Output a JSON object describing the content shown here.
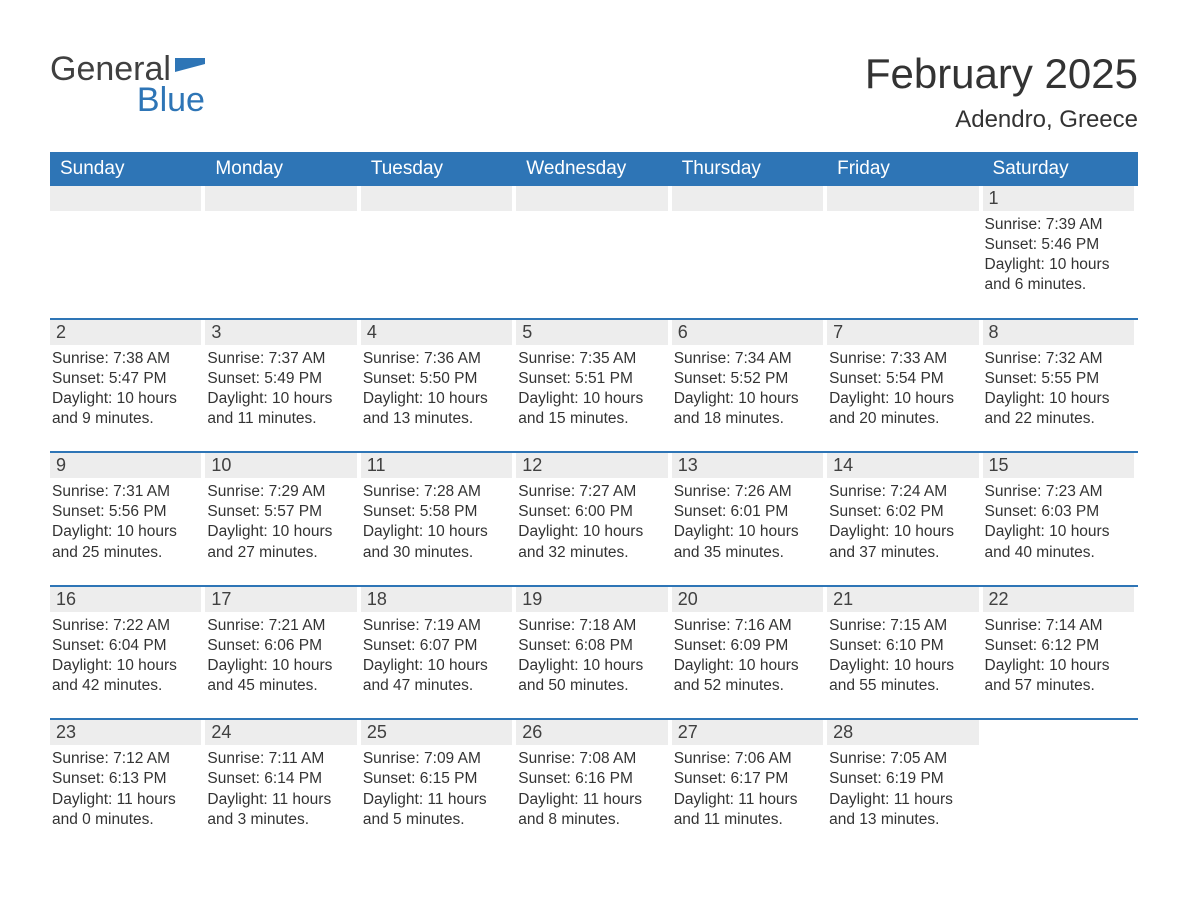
{
  "logo": {
    "text_general": "General",
    "text_blue": "Blue",
    "flag_color": "#2e75b6",
    "text_color_dark": "#404040"
  },
  "header": {
    "month_title": "February 2025",
    "location": "Adendro, Greece"
  },
  "colors": {
    "header_bg": "#2e75b6",
    "header_text": "#ffffff",
    "daynum_bg": "#ededed",
    "border": "#2e75b6",
    "body_text": "#333333",
    "background": "#ffffff"
  },
  "days_of_week": [
    "Sunday",
    "Monday",
    "Tuesday",
    "Wednesday",
    "Thursday",
    "Friday",
    "Saturday"
  ],
  "weeks": [
    [
      {
        "empty": true
      },
      {
        "empty": true
      },
      {
        "empty": true
      },
      {
        "empty": true
      },
      {
        "empty": true
      },
      {
        "empty": true
      },
      {
        "num": "1",
        "sunrise": "Sunrise: 7:39 AM",
        "sunset": "Sunset: 5:46 PM",
        "daylight": "Daylight: 10 hours and 6 minutes."
      }
    ],
    [
      {
        "num": "2",
        "sunrise": "Sunrise: 7:38 AM",
        "sunset": "Sunset: 5:47 PM",
        "daylight": "Daylight: 10 hours and 9 minutes."
      },
      {
        "num": "3",
        "sunrise": "Sunrise: 7:37 AM",
        "sunset": "Sunset: 5:49 PM",
        "daylight": "Daylight: 10 hours and 11 minutes."
      },
      {
        "num": "4",
        "sunrise": "Sunrise: 7:36 AM",
        "sunset": "Sunset: 5:50 PM",
        "daylight": "Daylight: 10 hours and 13 minutes."
      },
      {
        "num": "5",
        "sunrise": "Sunrise: 7:35 AM",
        "sunset": "Sunset: 5:51 PM",
        "daylight": "Daylight: 10 hours and 15 minutes."
      },
      {
        "num": "6",
        "sunrise": "Sunrise: 7:34 AM",
        "sunset": "Sunset: 5:52 PM",
        "daylight": "Daylight: 10 hours and 18 minutes."
      },
      {
        "num": "7",
        "sunrise": "Sunrise: 7:33 AM",
        "sunset": "Sunset: 5:54 PM",
        "daylight": "Daylight: 10 hours and 20 minutes."
      },
      {
        "num": "8",
        "sunrise": "Sunrise: 7:32 AM",
        "sunset": "Sunset: 5:55 PM",
        "daylight": "Daylight: 10 hours and 22 minutes."
      }
    ],
    [
      {
        "num": "9",
        "sunrise": "Sunrise: 7:31 AM",
        "sunset": "Sunset: 5:56 PM",
        "daylight": "Daylight: 10 hours and 25 minutes."
      },
      {
        "num": "10",
        "sunrise": "Sunrise: 7:29 AM",
        "sunset": "Sunset: 5:57 PM",
        "daylight": "Daylight: 10 hours and 27 minutes."
      },
      {
        "num": "11",
        "sunrise": "Sunrise: 7:28 AM",
        "sunset": "Sunset: 5:58 PM",
        "daylight": "Daylight: 10 hours and 30 minutes."
      },
      {
        "num": "12",
        "sunrise": "Sunrise: 7:27 AM",
        "sunset": "Sunset: 6:00 PM",
        "daylight": "Daylight: 10 hours and 32 minutes."
      },
      {
        "num": "13",
        "sunrise": "Sunrise: 7:26 AM",
        "sunset": "Sunset: 6:01 PM",
        "daylight": "Daylight: 10 hours and 35 minutes."
      },
      {
        "num": "14",
        "sunrise": "Sunrise: 7:24 AM",
        "sunset": "Sunset: 6:02 PM",
        "daylight": "Daylight: 10 hours and 37 minutes."
      },
      {
        "num": "15",
        "sunrise": "Sunrise: 7:23 AM",
        "sunset": "Sunset: 6:03 PM",
        "daylight": "Daylight: 10 hours and 40 minutes."
      }
    ],
    [
      {
        "num": "16",
        "sunrise": "Sunrise: 7:22 AM",
        "sunset": "Sunset: 6:04 PM",
        "daylight": "Daylight: 10 hours and 42 minutes."
      },
      {
        "num": "17",
        "sunrise": "Sunrise: 7:21 AM",
        "sunset": "Sunset: 6:06 PM",
        "daylight": "Daylight: 10 hours and 45 minutes."
      },
      {
        "num": "18",
        "sunrise": "Sunrise: 7:19 AM",
        "sunset": "Sunset: 6:07 PM",
        "daylight": "Daylight: 10 hours and 47 minutes."
      },
      {
        "num": "19",
        "sunrise": "Sunrise: 7:18 AM",
        "sunset": "Sunset: 6:08 PM",
        "daylight": "Daylight: 10 hours and 50 minutes."
      },
      {
        "num": "20",
        "sunrise": "Sunrise: 7:16 AM",
        "sunset": "Sunset: 6:09 PM",
        "daylight": "Daylight: 10 hours and 52 minutes."
      },
      {
        "num": "21",
        "sunrise": "Sunrise: 7:15 AM",
        "sunset": "Sunset: 6:10 PM",
        "daylight": "Daylight: 10 hours and 55 minutes."
      },
      {
        "num": "22",
        "sunrise": "Sunrise: 7:14 AM",
        "sunset": "Sunset: 6:12 PM",
        "daylight": "Daylight: 10 hours and 57 minutes."
      }
    ],
    [
      {
        "num": "23",
        "sunrise": "Sunrise: 7:12 AM",
        "sunset": "Sunset: 6:13 PM",
        "daylight": "Daylight: 11 hours and 0 minutes."
      },
      {
        "num": "24",
        "sunrise": "Sunrise: 7:11 AM",
        "sunset": "Sunset: 6:14 PM",
        "daylight": "Daylight: 11 hours and 3 minutes."
      },
      {
        "num": "25",
        "sunrise": "Sunrise: 7:09 AM",
        "sunset": "Sunset: 6:15 PM",
        "daylight": "Daylight: 11 hours and 5 minutes."
      },
      {
        "num": "26",
        "sunrise": "Sunrise: 7:08 AM",
        "sunset": "Sunset: 6:16 PM",
        "daylight": "Daylight: 11 hours and 8 minutes."
      },
      {
        "num": "27",
        "sunrise": "Sunrise: 7:06 AM",
        "sunset": "Sunset: 6:17 PM",
        "daylight": "Daylight: 11 hours and 11 minutes."
      },
      {
        "num": "28",
        "sunrise": "Sunrise: 7:05 AM",
        "sunset": "Sunset: 6:19 PM",
        "daylight": "Daylight: 11 hours and 13 minutes."
      },
      {
        "empty": true,
        "nobar": true
      }
    ]
  ]
}
